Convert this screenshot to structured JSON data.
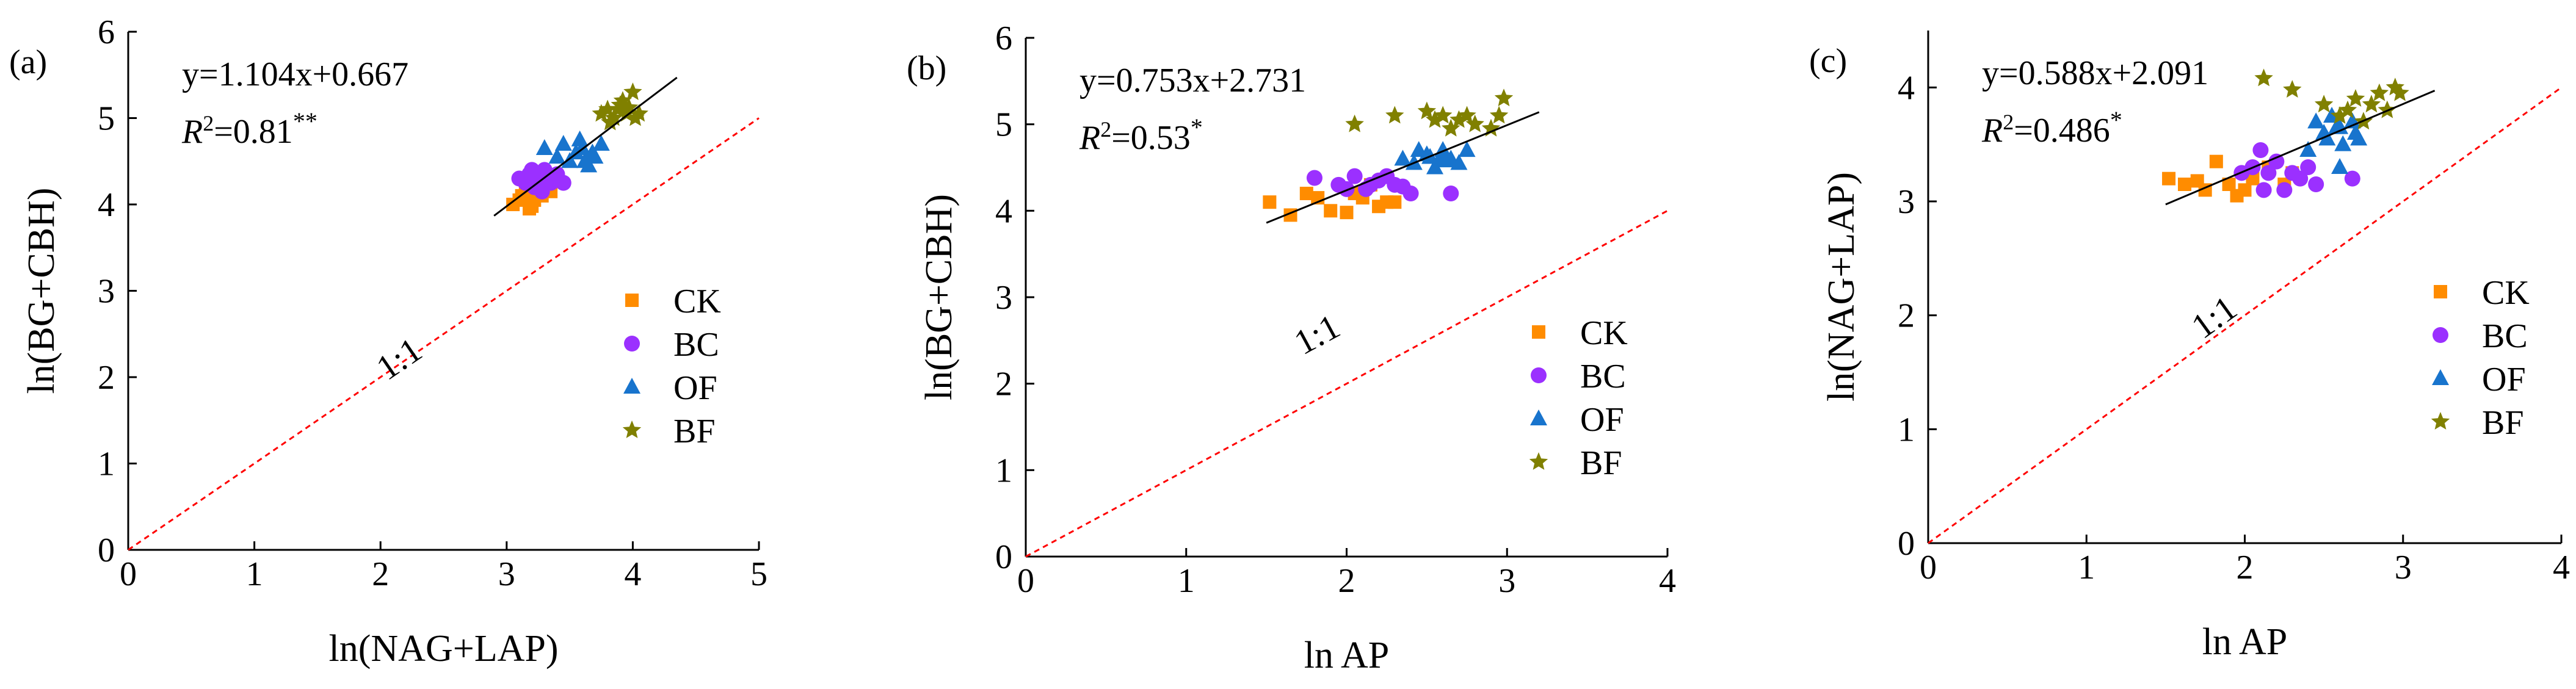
{
  "colors": {
    "CK": "#ff8c00",
    "BC": "#9b30ff",
    "OF": "#1874cd",
    "BF": "#808000",
    "fit_line": "#000000",
    "ref_line": "#ff0000"
  },
  "chart_data": [
    {
      "type": "scatter",
      "panel_label": "(a)",
      "xlabel": "ln(NAG+LAP)",
      "ylabel": "ln(BG+CBH)",
      "xlim": [
        0,
        5
      ],
      "ylim": [
        0,
        6
      ],
      "xticks": [
        0,
        1,
        2,
        3,
        4,
        5
      ],
      "yticks": [
        0,
        1,
        2,
        3,
        4,
        5,
        6
      ],
      "equation": "y=1.104x+0.667",
      "r2_prefix": "R",
      "r2_power": "2",
      "r2_value": "=0.81",
      "significance": "**",
      "fit": {
        "slope": 1.104,
        "intercept": 0.667,
        "x_range": [
          2.9,
          4.35
        ]
      },
      "ref_label": "1:1",
      "ref_label_pos": [
        2.2,
        2.1
      ],
      "legend_position": "right",
      "series": [
        {
          "name": "CK",
          "marker": "square",
          "points": [
            [
              3.05,
              4.0
            ],
            [
              3.12,
              4.1
            ],
            [
              3.18,
              3.95
            ],
            [
              3.2,
              4.15
            ],
            [
              3.22,
              4.05
            ],
            [
              3.25,
              4.2
            ],
            [
              3.15,
              4.25
            ],
            [
              3.28,
              4.1
            ],
            [
              3.1,
              4.05
            ],
            [
              3.3,
              4.2
            ],
            [
              3.2,
              3.98
            ],
            [
              3.35,
              4.15
            ]
          ]
        },
        {
          "name": "BC",
          "marker": "circle",
          "points": [
            [
              3.1,
              4.3
            ],
            [
              3.18,
              4.35
            ],
            [
              3.22,
              4.2
            ],
            [
              3.25,
              4.3
            ],
            [
              3.3,
              4.4
            ],
            [
              3.35,
              4.25
            ],
            [
              3.28,
              4.15
            ],
            [
              3.15,
              4.25
            ],
            [
              3.4,
              4.35
            ],
            [
              3.45,
              4.25
            ],
            [
              3.2,
              4.4
            ],
            [
              3.32,
              4.3
            ]
          ]
        },
        {
          "name": "OF",
          "marker": "triangle",
          "points": [
            [
              3.3,
              4.65
            ],
            [
              3.45,
              4.7
            ],
            [
              3.55,
              4.6
            ],
            [
              3.6,
              4.65
            ],
            [
              3.62,
              4.5
            ],
            [
              3.7,
              4.55
            ],
            [
              3.5,
              4.5
            ],
            [
              3.65,
              4.45
            ],
            [
              3.75,
              4.7
            ],
            [
              3.58,
              4.75
            ],
            [
              3.68,
              4.6
            ],
            [
              3.4,
              4.55
            ]
          ]
        },
        {
          "name": "BF",
          "marker": "star",
          "points": [
            [
              3.75,
              5.05
            ],
            [
              3.8,
              5.1
            ],
            [
              3.85,
              5.0
            ],
            [
              3.9,
              5.15
            ],
            [
              3.95,
              5.05
            ],
            [
              4.0,
              5.3
            ],
            [
              3.82,
              4.95
            ],
            [
              3.92,
              5.2
            ],
            [
              4.02,
              5.0
            ],
            [
              3.88,
              5.1
            ],
            [
              3.97,
              5.12
            ],
            [
              4.05,
              5.05
            ]
          ]
        }
      ]
    },
    {
      "type": "scatter",
      "panel_label": "(b)",
      "xlabel": "ln AP",
      "ylabel": "ln(BG+CBH)",
      "xlim": [
        0,
        4
      ],
      "ylim": [
        0,
        6
      ],
      "xticks": [
        0,
        1,
        2,
        3,
        4
      ],
      "yticks": [
        0,
        1,
        2,
        3,
        4,
        5,
        6
      ],
      "equation": "y=0.753x+2.731",
      "r2_prefix": "R",
      "r2_power": "2",
      "r2_value": "=0.53",
      "significance": "*",
      "fit": {
        "slope": 0.753,
        "intercept": 2.731,
        "x_range": [
          1.5,
          3.2
        ]
      },
      "ref_label": "1:1",
      "ref_label_pos": [
        1.85,
        2.45
      ],
      "legend_position": "bottom-right",
      "series": [
        {
          "name": "CK",
          "marker": "square",
          "points": [
            [
              1.52,
              4.1
            ],
            [
              1.65,
              3.95
            ],
            [
              1.75,
              4.2
            ],
            [
              1.82,
              4.15
            ],
            [
              1.9,
              4.0
            ],
            [
              2.0,
              3.98
            ],
            [
              2.05,
              4.2
            ],
            [
              2.1,
              4.15
            ],
            [
              2.15,
              4.3
            ],
            [
              2.2,
              4.05
            ],
            [
              2.25,
              4.1
            ],
            [
              2.3,
              4.1
            ]
          ]
        },
        {
          "name": "BC",
          "marker": "circle",
          "points": [
            [
              1.8,
              4.38
            ],
            [
              1.95,
              4.3
            ],
            [
              2.05,
              4.4
            ],
            [
              2.12,
              4.25
            ],
            [
              2.2,
              4.35
            ],
            [
              2.3,
              4.3
            ],
            [
              2.35,
              4.28
            ],
            [
              2.4,
              4.2
            ],
            [
              2.0,
              4.25
            ],
            [
              2.25,
              4.4
            ],
            [
              2.15,
              4.3
            ],
            [
              2.65,
              4.2
            ]
          ]
        },
        {
          "name": "OF",
          "marker": "triangle",
          "points": [
            [
              2.35,
              4.6
            ],
            [
              2.42,
              4.55
            ],
            [
              2.5,
              4.65
            ],
            [
              2.55,
              4.5
            ],
            [
              2.6,
              4.7
            ],
            [
              2.65,
              4.6
            ],
            [
              2.7,
              4.55
            ],
            [
              2.75,
              4.7
            ],
            [
              2.45,
              4.7
            ],
            [
              2.58,
              4.6
            ],
            [
              2.52,
              4.62
            ],
            [
              2.62,
              4.58
            ]
          ]
        },
        {
          "name": "BF",
          "marker": "star",
          "points": [
            [
              2.05,
              5.0
            ],
            [
              2.3,
              5.1
            ],
            [
              2.5,
              5.15
            ],
            [
              2.55,
              5.05
            ],
            [
              2.6,
              5.1
            ],
            [
              2.65,
              4.95
            ],
            [
              2.7,
              5.05
            ],
            [
              2.75,
              5.1
            ],
            [
              2.8,
              5.0
            ],
            [
              2.9,
              4.95
            ],
            [
              2.95,
              5.1
            ],
            [
              2.98,
              5.3
            ]
          ]
        }
      ]
    },
    {
      "type": "scatter",
      "panel_label": "(c)",
      "xlabel": "ln AP",
      "ylabel": "ln(NAG+LAP)",
      "xlim": [
        0,
        4
      ],
      "ylim": [
        0,
        4.5
      ],
      "xticks": [
        0,
        1,
        2,
        3,
        4
      ],
      "yticks": [
        0,
        1,
        2,
        3,
        4
      ],
      "equation": "y=0.588x+2.091",
      "r2_prefix": "R",
      "r2_power": "2",
      "r2_value": "=0.486",
      "significance": "*",
      "fit": {
        "slope": 0.588,
        "intercept": 2.091,
        "x_range": [
          1.5,
          3.2
        ]
      },
      "ref_label": "1:1",
      "ref_label_pos": [
        1.85,
        1.9
      ],
      "legend_position": "bottom-right",
      "series": [
        {
          "name": "CK",
          "marker": "square",
          "points": [
            [
              1.52,
              3.2
            ],
            [
              1.62,
              3.15
            ],
            [
              1.7,
              3.18
            ],
            [
              1.75,
              3.1
            ],
            [
              1.82,
              3.35
            ],
            [
              1.9,
              3.15
            ],
            [
              1.95,
              3.05
            ],
            [
              2.05,
              3.2
            ],
            [
              2.15,
              3.3
            ],
            [
              2.25,
              3.15
            ],
            [
              2.3,
              3.25
            ],
            [
              2.0,
              3.1
            ]
          ]
        },
        {
          "name": "BC",
          "marker": "circle",
          "points": [
            [
              1.98,
              3.25
            ],
            [
              2.05,
              3.3
            ],
            [
              2.1,
              3.45
            ],
            [
              2.15,
              3.25
            ],
            [
              2.2,
              3.35
            ],
            [
              2.25,
              3.1
            ],
            [
              2.3,
              3.25
            ],
            [
              2.35,
              3.2
            ],
            [
              2.4,
              3.3
            ],
            [
              2.12,
              3.1
            ],
            [
              2.68,
              3.2
            ],
            [
              2.45,
              3.15
            ]
          ]
        },
        {
          "name": "OF",
          "marker": "triangle",
          "points": [
            [
              2.4,
              3.45
            ],
            [
              2.45,
              3.7
            ],
            [
              2.5,
              3.6
            ],
            [
              2.55,
              3.75
            ],
            [
              2.6,
              3.65
            ],
            [
              2.62,
              3.5
            ],
            [
              2.68,
              3.7
            ],
            [
              2.72,
              3.55
            ],
            [
              2.52,
              3.55
            ],
            [
              2.58,
              3.65
            ],
            [
              2.7,
              3.6
            ],
            [
              2.6,
              3.3
            ]
          ]
        },
        {
          "name": "BF",
          "marker": "star",
          "points": [
            [
              2.12,
              4.08
            ],
            [
              2.3,
              3.98
            ],
            [
              2.5,
              3.85
            ],
            [
              2.6,
              3.75
            ],
            [
              2.65,
              3.8
            ],
            [
              2.7,
              3.9
            ],
            [
              2.75,
              3.7
            ],
            [
              2.8,
              3.85
            ],
            [
              2.85,
              3.95
            ],
            [
              2.9,
              3.8
            ],
            [
              2.95,
              4.0
            ],
            [
              2.98,
              3.95
            ]
          ]
        }
      ]
    }
  ]
}
